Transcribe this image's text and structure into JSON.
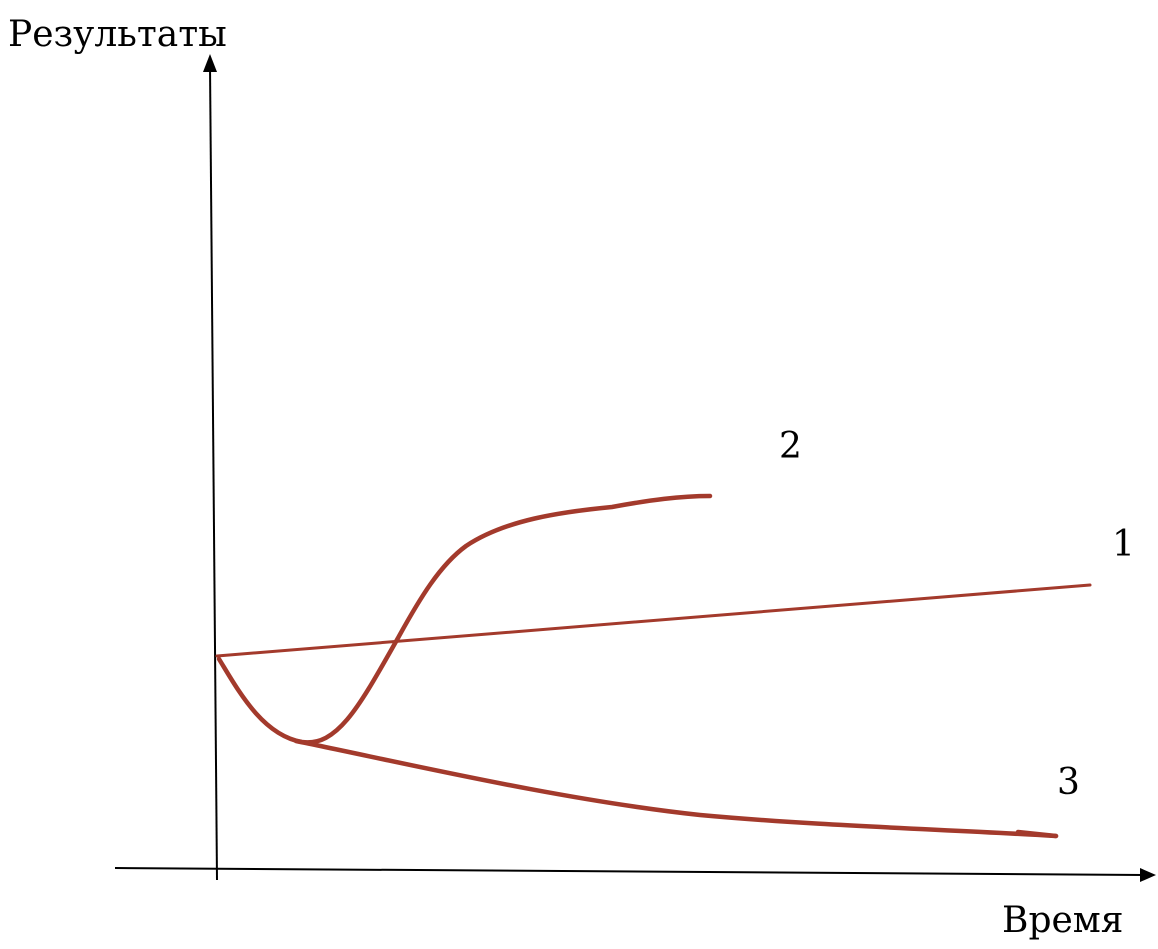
{
  "axes": {
    "y_label": "Результаты",
    "x_label": "Время"
  },
  "curves": [
    {
      "label": "1",
      "color": "#a33a2c"
    },
    {
      "label": "2",
      "color": "#a33a2c"
    },
    {
      "label": "3",
      "color": "#a33a2c"
    }
  ],
  "colors": {
    "axis": "#000000",
    "curve": "#a33a2c"
  }
}
